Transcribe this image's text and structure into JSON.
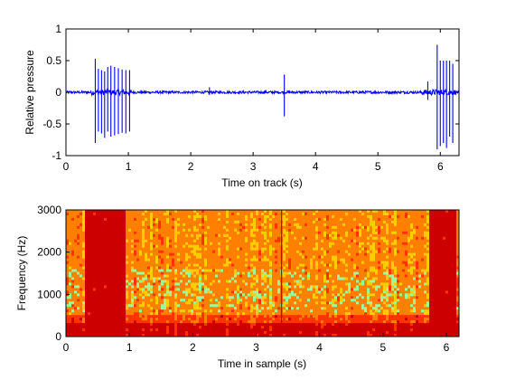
{
  "chart_data": [
    {
      "type": "line",
      "xlabel": "Time on track (s)",
      "ylabel": "Relative pressure",
      "xlim": [
        0,
        6.3
      ],
      "ylim": [
        -1,
        1
      ],
      "xticks": [
        0,
        1,
        2,
        3,
        4,
        5,
        6
      ],
      "yticks": [
        -1,
        -0.5,
        0,
        0.5,
        1
      ],
      "ytick_labels": [
        "-1",
        "-0.5",
        "0",
        "0.5",
        "1"
      ],
      "line_color": "#0000ff",
      "grid": false,
      "baseline_noise": 0.02,
      "spikes": [
        {
          "x": 0.47,
          "y_max": 0.53,
          "y_min": -0.8
        },
        {
          "x": 0.52,
          "y_max": 0.37,
          "y_min": -0.62
        },
        {
          "x": 0.57,
          "y_max": 0.35,
          "y_min": -0.65
        },
        {
          "x": 0.62,
          "y_max": 0.33,
          "y_min": -0.72
        },
        {
          "x": 0.67,
          "y_max": 0.4,
          "y_min": -0.62
        },
        {
          "x": 0.72,
          "y_max": 0.42,
          "y_min": -0.7
        },
        {
          "x": 0.78,
          "y_max": 0.4,
          "y_min": -0.68
        },
        {
          "x": 0.84,
          "y_max": 0.38,
          "y_min": -0.66
        },
        {
          "x": 0.9,
          "y_max": 0.36,
          "y_min": -0.64
        },
        {
          "x": 0.96,
          "y_max": 0.35,
          "y_min": -0.65
        },
        {
          "x": 1.02,
          "y_max": 0.35,
          "y_min": -0.62
        },
        {
          "x": 2.3,
          "y_max": 0.08,
          "y_min": -0.04
        },
        {
          "x": 3.5,
          "y_max": 0.28,
          "y_min": -0.38
        },
        {
          "x": 5.8,
          "y_max": 0.17,
          "y_min": -0.12
        },
        {
          "x": 5.95,
          "y_max": 0.75,
          "y_min": -0.9
        },
        {
          "x": 6.0,
          "y_max": 0.5,
          "y_min": -0.85
        },
        {
          "x": 6.05,
          "y_max": 0.5,
          "y_min": -0.8
        },
        {
          "x": 6.1,
          "y_max": 0.5,
          "y_min": -0.88
        },
        {
          "x": 6.15,
          "y_max": 0.5,
          "y_min": -0.7
        },
        {
          "x": 6.2,
          "y_max": 0.45,
          "y_min": -0.8
        }
      ]
    },
    {
      "type": "heatmap",
      "xlabel": "Time in sample (s)",
      "ylabel": "Frequency (Hz)",
      "xlim": [
        0,
        6.2
      ],
      "ylim": [
        0,
        3000
      ],
      "xticks": [
        0,
        1,
        2,
        3,
        4,
        5,
        6
      ],
      "yticks": [
        0,
        1000,
        2000,
        3000
      ],
      "colormap": "jet",
      "color_stops": [
        "#ffff66",
        "#ffcc00",
        "#ff8000",
        "#ff3300",
        "#cc0000"
      ],
      "highlight_color": "#99ff99",
      "high_energy_regions": [
        {
          "x0": 0.32,
          "x1": 0.93,
          "f0": 0,
          "f1": 3000
        },
        {
          "x0": 5.75,
          "x1": 6.15,
          "f0": 0,
          "f1": 3000
        }
      ],
      "vertical_lines": [
        3.4
      ],
      "low_frequency_band": {
        "f0": 0,
        "f1": 300
      }
    }
  ]
}
